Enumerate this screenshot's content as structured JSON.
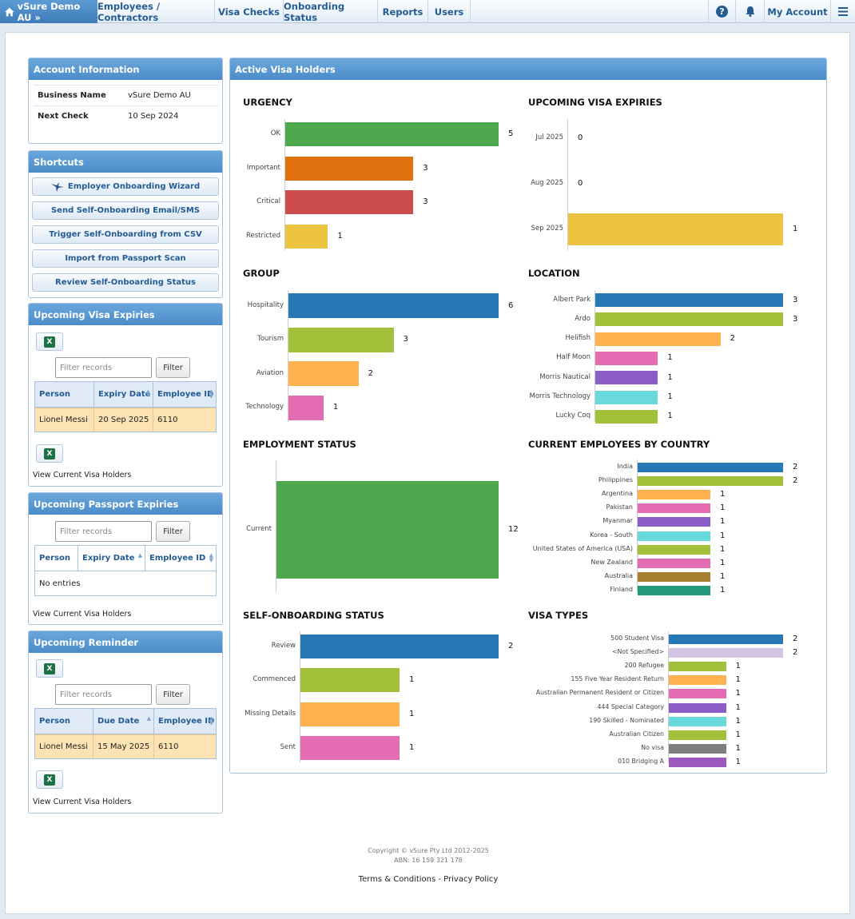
{
  "nav": {
    "brand": "vSure Demo AU »",
    "items": [
      "Employees / Contractors",
      "Visa Checks",
      "Onboarding Status",
      "Reports",
      "Users"
    ],
    "my_account": "My Account"
  },
  "account": {
    "title": "Account Information",
    "rows": [
      {
        "key": "Business Name",
        "value": "vSure Demo AU"
      },
      {
        "key": "Next Check",
        "value": "10 Sep 2024"
      }
    ]
  },
  "shortcuts": {
    "title": "Shortcuts",
    "items": [
      "Employer Onboarding Wizard",
      "Send Self-Onboarding Email/SMS",
      "Trigger Self-Onboarding from CSV",
      "Import from Passport Scan",
      "Review Self-Onboarding Status"
    ]
  },
  "visa_exp": {
    "title": "Upcoming Visa Expiries",
    "placeholder": "Filter records",
    "filter": "Filter",
    "cols": [
      "Person",
      "Expiry Date",
      "Employee ID"
    ],
    "row": [
      "Lionel Messi",
      "20 Sep 2025",
      "6110"
    ],
    "link": "View Current Visa Holders"
  },
  "passport_exp": {
    "title": "Upcoming Passport Expiries",
    "placeholder": "Filter records",
    "filter": "Filter",
    "cols": [
      "Person",
      "Expiry Date",
      "Employee ID"
    ],
    "empty": "No entries",
    "link": "View Current Visa Holders"
  },
  "reminder": {
    "title": "Upcoming Reminder",
    "placeholder": "Filter records",
    "filter": "Filter",
    "cols": [
      "Person",
      "Due Date",
      "Employee ID"
    ],
    "row": [
      "Lionel Messi",
      "15 May 2025",
      "6110"
    ],
    "link": "View Current Visa Holders"
  },
  "active": {
    "title": "Active Visa Holders"
  },
  "colors": {
    "green": "#4ea84e",
    "orange": "#e0700d",
    "red": "#cc4b4b",
    "yellow": "#ecc43f",
    "blue": "#2778b4",
    "lime": "#a2c03a",
    "lightorange": "#fdb14f",
    "pink": "#e46cb3",
    "purple": "#8c5cc7",
    "cyan": "#6ad9dc",
    "brown": "#a8802f",
    "teal": "#23997a",
    "lavender": "#d4c4e4",
    "gray": "#7f7f7f",
    "violet": "#9b59c0"
  },
  "chart_data": [
    {
      "type": "bar",
      "title": "URGENCY",
      "categories": [
        "OK",
        "Important",
        "Critical",
        "Restricted"
      ],
      "values": [
        5,
        3,
        3,
        1
      ],
      "colors": [
        "green",
        "orange",
        "red",
        "yellow"
      ]
    },
    {
      "type": "bar",
      "title": "UPCOMING VISA EXPIRIES",
      "categories": [
        "Jul 2025",
        "Aug 2025",
        "Sep 2025"
      ],
      "values": [
        0,
        0,
        1
      ],
      "colors": [
        "yellow",
        "yellow",
        "yellow"
      ]
    },
    {
      "type": "bar",
      "title": "GROUP",
      "categories": [
        "Hospitality",
        "Tourism",
        "Aviation",
        "Technology"
      ],
      "values": [
        6,
        3,
        2,
        1
      ],
      "colors": [
        "blue",
        "lime",
        "lightorange",
        "pink"
      ]
    },
    {
      "type": "bar",
      "title": "LOCATION",
      "categories": [
        "Albert Park",
        "Ardo",
        "Helifish",
        "Half Moon",
        "Morris Nautical",
        "Morris Technology",
        "Lucky Coq"
      ],
      "values": [
        3,
        3,
        2,
        1,
        1,
        1,
        1
      ],
      "colors": [
        "blue",
        "lime",
        "lightorange",
        "pink",
        "purple",
        "cyan",
        "lime"
      ]
    },
    {
      "type": "bar",
      "title": "EMPLOYMENT STATUS",
      "categories": [
        "Current"
      ],
      "values": [
        12
      ],
      "colors": [
        "green"
      ]
    },
    {
      "type": "bar",
      "title": "CURRENT EMPLOYEES BY COUNTRY",
      "categories": [
        "India",
        "Philippines",
        "Argentina",
        "Pakistan",
        "Myanmar",
        "Korea - South",
        "United States of America (USA)",
        "New Zealand",
        "Australia",
        "Finland"
      ],
      "values": [
        2,
        2,
        1,
        1,
        1,
        1,
        1,
        1,
        1,
        1
      ],
      "colors": [
        "blue",
        "lime",
        "lightorange",
        "pink",
        "purple",
        "cyan",
        "lime",
        "pink",
        "brown",
        "teal"
      ]
    },
    {
      "type": "bar",
      "title": "SELF-ONBOARDING STATUS",
      "categories": [
        "Review",
        "Commenced",
        "Missing Details",
        "Sent"
      ],
      "values": [
        2,
        1,
        1,
        1
      ],
      "colors": [
        "blue",
        "lime",
        "lightorange",
        "pink"
      ]
    },
    {
      "type": "bar",
      "title": "VISA TYPES",
      "categories": [
        "500 Student Visa",
        "<Not Specified>",
        "200 Refugee",
        "155 Five Year Resident Return",
        "Australian Permanent Resident or Citizen",
        "444 Special Category",
        "190 Skilled - Nominated",
        "Australian Citizen",
        "No visa",
        "010 Bridging A"
      ],
      "values": [
        2,
        2,
        1,
        1,
        1,
        1,
        1,
        1,
        1,
        1
      ],
      "colors": [
        "blue",
        "lavender",
        "lime",
        "lightorange",
        "pink",
        "purple",
        "cyan",
        "lime",
        "gray",
        "violet"
      ]
    }
  ],
  "footer": {
    "copyright": "Copyright © vSure Pty Ltd 2012-2025",
    "abn": "ABN: 16 159 321 178",
    "terms": "Terms & Conditions",
    "sep": " - ",
    "privacy": "Privacy Policy"
  }
}
